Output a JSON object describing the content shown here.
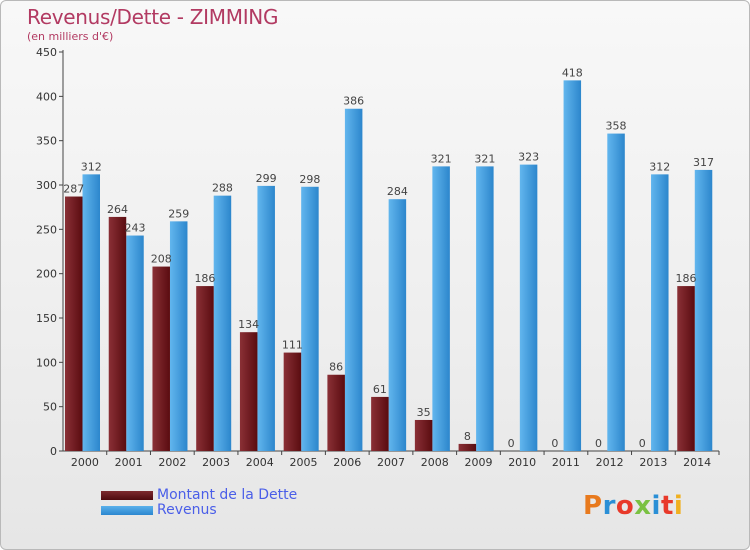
{
  "title": "Revenus/Dette - ZIMMING",
  "subtitle": "(en milliers d'€)",
  "logo": {
    "letters": [
      "P",
      "r",
      "o",
      "x",
      "i",
      "t",
      "i"
    ],
    "colors": [
      "#e87a1e",
      "#2a8fd6",
      "#e8392a",
      "#7ac142",
      "#2a8fd6",
      "#e8392a",
      "#f0b020"
    ]
  },
  "colors": {
    "debt_top": "#7d2a2e",
    "debt_bottom": "#5a0c10",
    "revenue_light": "#5ab0ea",
    "revenue_dark": "#2b87cf",
    "title": "#b23a62",
    "legend_text": "#4a5ee8"
  },
  "chart_data": {
    "type": "bar",
    "categories": [
      "2000",
      "2001",
      "2002",
      "2003",
      "2004",
      "2005",
      "2006",
      "2007",
      "2008",
      "2009",
      "2010",
      "2011",
      "2012",
      "2013",
      "2014"
    ],
    "series": [
      {
        "name": "Montant de la Dette",
        "values": [
          287,
          264,
          208,
          186,
          134,
          111,
          86,
          61,
          35,
          8,
          0,
          0,
          0,
          0,
          186
        ]
      },
      {
        "name": "Revenus",
        "values": [
          312,
          243,
          259,
          288,
          299,
          298,
          386,
          284,
          321,
          321,
          323,
          418,
          358,
          312,
          317
        ]
      }
    ],
    "yticks": [
      0,
      50,
      100,
      150,
      200,
      250,
      300,
      350,
      400,
      450
    ],
    "ylim": [
      0,
      450
    ],
    "grid": false,
    "legend": "bottom-left"
  }
}
